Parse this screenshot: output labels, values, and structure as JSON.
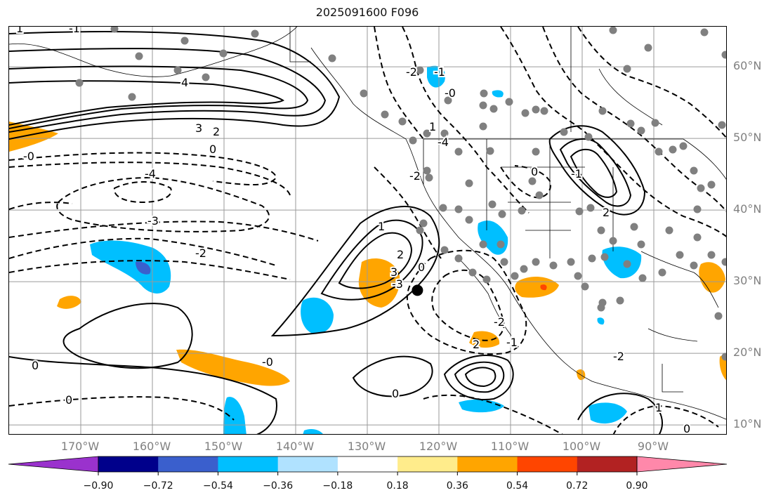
{
  "title": "2025091600 F096",
  "map": {
    "grid": {
      "latitudes": [
        {
          "value": 60,
          "label": "60°N"
        },
        {
          "value": 50,
          "label": "50°N"
        },
        {
          "value": 40,
          "label": "40°N"
        },
        {
          "value": 30,
          "label": "30°N"
        },
        {
          "value": 20,
          "label": "20°N"
        },
        {
          "value": 10,
          "label": "10°N"
        }
      ],
      "longitudes": [
        {
          "value": -170,
          "label": "170°W"
        },
        {
          "value": -160,
          "label": "160°W"
        },
        {
          "value": -150,
          "label": "150°W"
        },
        {
          "value": -140,
          "label": "140°W"
        },
        {
          "value": -130,
          "label": "130°W"
        },
        {
          "value": -120,
          "label": "120°W"
        },
        {
          "value": -110,
          "label": "110°W"
        },
        {
          "value": -100,
          "label": "100°W"
        },
        {
          "value": -90,
          "label": "90°W"
        }
      ],
      "grid_color": "#9a9a9a"
    },
    "contour_labels": [
      "1",
      "-1",
      "4",
      "-4",
      "3",
      "-3",
      "2",
      "-2",
      "0",
      "-0",
      "1",
      "2",
      "3",
      "-0",
      "0",
      "-2",
      "-3",
      "-4",
      "-2",
      "0",
      "0",
      "1",
      "2",
      "-1",
      "0",
      "-1",
      "-2",
      "-2",
      "2",
      "-1",
      "-0",
      "0",
      "1",
      "0"
    ],
    "marker": {
      "lon": -123,
      "lat": 28.8,
      "color": "#000000"
    }
  },
  "colorbar": {
    "colors": [
      "#9a32cd",
      "#00008b",
      "#3a5fcd",
      "#00bfff",
      "#b0e2ff",
      "#ffffff",
      "#ffec8b",
      "#ffa500",
      "#ff4500",
      "#b22222",
      "#ff88aa"
    ],
    "ticks": [
      "−0.90",
      "−0.72",
      "−0.54",
      "−0.36",
      "−0.18",
      "0.18",
      "0.36",
      "0.54",
      "0.72",
      "0.90"
    ]
  }
}
